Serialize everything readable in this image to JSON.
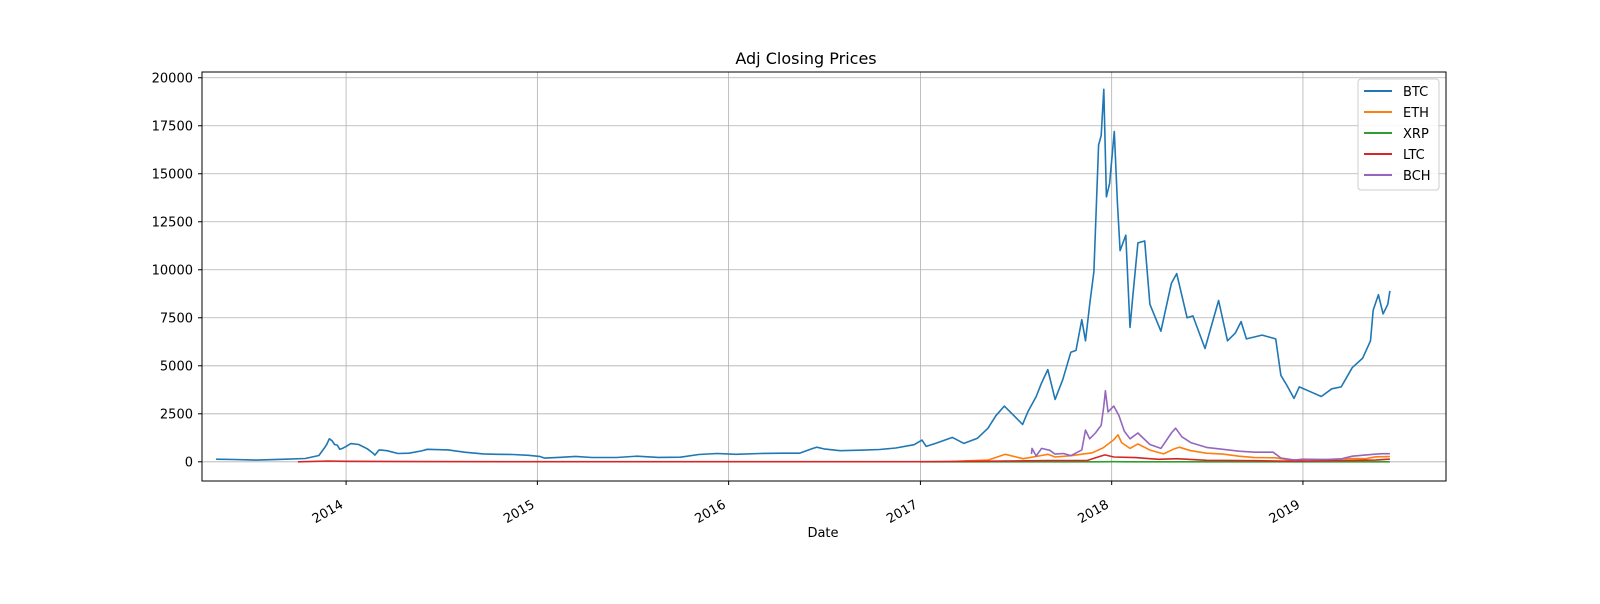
{
  "chart_data": {
    "type": "line",
    "title": "Adj Closing Prices",
    "xlabel": "Date",
    "ylabel": "",
    "grid": true,
    "legend_position": "top-right",
    "xlim": [
      "2013-04-01",
      "2019-10-01"
    ],
    "ylim": [
      -1000,
      20300
    ],
    "x_ticks": [
      "2014",
      "2015",
      "2016",
      "2017",
      "2018",
      "2019"
    ],
    "y_ticks": [
      0,
      2500,
      5000,
      7500,
      10000,
      12500,
      15000,
      17500,
      20000
    ],
    "series": [
      {
        "name": "BTC",
        "color": "#1f77b4",
        "points": [
          [
            "2013-04-28",
            135
          ],
          [
            "2013-06-01",
            120
          ],
          [
            "2013-07-15",
            90
          ],
          [
            "2013-09-01",
            130
          ],
          [
            "2013-10-15",
            170
          ],
          [
            "2013-11-10",
            330
          ],
          [
            "2013-11-20",
            700
          ],
          [
            "2013-11-25",
            900
          ],
          [
            "2013-11-30",
            1200
          ],
          [
            "2013-12-05",
            1100
          ],
          [
            "2013-12-10",
            900
          ],
          [
            "2013-12-15",
            870
          ],
          [
            "2013-12-20",
            650
          ],
          [
            "2013-12-25",
            700
          ],
          [
            "2014-01-01",
            800
          ],
          [
            "2014-01-10",
            950
          ],
          [
            "2014-01-25",
            900
          ],
          [
            "2014-02-10",
            680
          ],
          [
            "2014-02-20",
            480
          ],
          [
            "2014-02-25",
            350
          ],
          [
            "2014-03-05",
            620
          ],
          [
            "2014-03-20",
            580
          ],
          [
            "2014-04-10",
            430
          ],
          [
            "2014-05-01",
            450
          ],
          [
            "2014-05-25",
            570
          ],
          [
            "2014-06-05",
            650
          ],
          [
            "2014-07-15",
            620
          ],
          [
            "2014-08-15",
            500
          ],
          [
            "2014-09-20",
            410
          ],
          [
            "2014-10-15",
            390
          ],
          [
            "2014-11-15",
            380
          ],
          [
            "2014-12-15",
            340
          ],
          [
            "2015-01-05",
            280
          ],
          [
            "2015-01-15",
            190
          ],
          [
            "2015-02-15",
            235
          ],
          [
            "2015-03-15",
            280
          ],
          [
            "2015-04-15",
            225
          ],
          [
            "2015-06-01",
            225
          ],
          [
            "2015-07-10",
            290
          ],
          [
            "2015-08-20",
            230
          ],
          [
            "2015-10-01",
            240
          ],
          [
            "2015-11-05",
            380
          ],
          [
            "2015-12-10",
            430
          ],
          [
            "2016-01-15",
            390
          ],
          [
            "2016-03-01",
            430
          ],
          [
            "2016-04-15",
            450
          ],
          [
            "2016-05-15",
            450
          ],
          [
            "2016-06-10",
            700
          ],
          [
            "2016-06-17",
            760
          ],
          [
            "2016-07-01",
            670
          ],
          [
            "2016-08-01",
            580
          ],
          [
            "2016-09-15",
            610
          ],
          [
            "2016-10-15",
            640
          ],
          [
            "2016-11-15",
            720
          ],
          [
            "2016-12-20",
            890
          ],
          [
            "2017-01-04",
            1130
          ],
          [
            "2017-01-12",
            800
          ],
          [
            "2017-02-01",
            980
          ],
          [
            "2017-03-03",
            1270
          ],
          [
            "2017-03-25",
            960
          ],
          [
            "2017-04-20",
            1230
          ],
          [
            "2017-05-10",
            1750
          ],
          [
            "2017-05-25",
            2400
          ],
          [
            "2017-06-10",
            2900
          ],
          [
            "2017-06-25",
            2500
          ],
          [
            "2017-07-15",
            1950
          ],
          [
            "2017-07-25",
            2600
          ],
          [
            "2017-08-10",
            3400
          ],
          [
            "2017-08-20",
            4100
          ],
          [
            "2017-09-01",
            4800
          ],
          [
            "2017-09-15",
            3250
          ],
          [
            "2017-09-30",
            4300
          ],
          [
            "2017-10-15",
            5700
          ],
          [
            "2017-10-25",
            5800
          ],
          [
            "2017-11-05",
            7400
          ],
          [
            "2017-11-12",
            6300
          ],
          [
            "2017-11-20",
            8200
          ],
          [
            "2017-11-28",
            9900
          ],
          [
            "2017-12-07",
            16500
          ],
          [
            "2017-12-12",
            17000
          ],
          [
            "2017-12-17",
            19400
          ],
          [
            "2017-12-22",
            13800
          ],
          [
            "2017-12-28",
            14500
          ],
          [
            "2018-01-06",
            17200
          ],
          [
            "2018-01-12",
            13500
          ],
          [
            "2018-01-17",
            11000
          ],
          [
            "2018-01-28",
            11800
          ],
          [
            "2018-02-05",
            7000
          ],
          [
            "2018-02-10",
            8500
          ],
          [
            "2018-02-20",
            11400
          ],
          [
            "2018-03-05",
            11500
          ],
          [
            "2018-03-15",
            8200
          ],
          [
            "2018-04-05",
            6800
          ],
          [
            "2018-04-25",
            9300
          ],
          [
            "2018-05-05",
            9800
          ],
          [
            "2018-05-25",
            7500
          ],
          [
            "2018-06-05",
            7600
          ],
          [
            "2018-06-28",
            5900
          ],
          [
            "2018-07-24",
            8400
          ],
          [
            "2018-08-10",
            6300
          ],
          [
            "2018-08-25",
            6700
          ],
          [
            "2018-09-05",
            7300
          ],
          [
            "2018-09-15",
            6400
          ],
          [
            "2018-10-15",
            6600
          ],
          [
            "2018-11-10",
            6400
          ],
          [
            "2018-11-20",
            4500
          ],
          [
            "2018-12-01",
            4000
          ],
          [
            "2018-12-15",
            3300
          ],
          [
            "2018-12-25",
            3900
          ],
          [
            "2019-01-15",
            3650
          ],
          [
            "2019-02-05",
            3400
          ],
          [
            "2019-02-25",
            3800
          ],
          [
            "2019-03-15",
            3900
          ],
          [
            "2019-04-05",
            4900
          ],
          [
            "2019-04-25",
            5400
          ],
          [
            "2019-05-10",
            6300
          ],
          [
            "2019-05-15",
            7900
          ],
          [
            "2019-05-25",
            8700
          ],
          [
            "2019-06-03",
            7700
          ],
          [
            "2019-06-12",
            8200
          ],
          [
            "2019-06-16",
            8900
          ]
        ]
      },
      {
        "name": "ETH",
        "color": "#ff7f0e",
        "points": [
          [
            "2017-03-01",
            15
          ],
          [
            "2017-04-01",
            50
          ],
          [
            "2017-05-10",
            90
          ],
          [
            "2017-06-12",
            390
          ],
          [
            "2017-07-16",
            160
          ],
          [
            "2017-08-15",
            300
          ],
          [
            "2017-09-01",
            390
          ],
          [
            "2017-09-15",
            250
          ],
          [
            "2017-10-15",
            320
          ],
          [
            "2017-11-25",
            470
          ],
          [
            "2017-12-15",
            720
          ],
          [
            "2017-12-20",
            820
          ],
          [
            "2018-01-05",
            1150
          ],
          [
            "2018-01-13",
            1400
          ],
          [
            "2018-01-20",
            1000
          ],
          [
            "2018-02-05",
            700
          ],
          [
            "2018-02-20",
            930
          ],
          [
            "2018-03-15",
            610
          ],
          [
            "2018-04-10",
            410
          ],
          [
            "2018-05-01",
            680
          ],
          [
            "2018-05-10",
            760
          ],
          [
            "2018-06-01",
            580
          ],
          [
            "2018-07-01",
            450
          ],
          [
            "2018-08-01",
            400
          ],
          [
            "2018-09-01",
            290
          ],
          [
            "2018-10-01",
            220
          ],
          [
            "2018-11-10",
            210
          ],
          [
            "2018-12-01",
            115
          ],
          [
            "2018-12-15",
            85
          ],
          [
            "2019-01-01",
            140
          ],
          [
            "2019-02-01",
            110
          ],
          [
            "2019-03-01",
            135
          ],
          [
            "2019-04-05",
            170
          ],
          [
            "2019-05-01",
            160
          ],
          [
            "2019-05-20",
            260
          ],
          [
            "2019-06-16",
            270
          ]
        ]
      },
      {
        "name": "XRP",
        "color": "#2ca02c",
        "points": [
          [
            "2017-01-01",
            0.01
          ],
          [
            "2017-05-15",
            0.3
          ],
          [
            "2017-12-01",
            0.25
          ],
          [
            "2018-01-05",
            3.3
          ],
          [
            "2018-02-01",
            1.2
          ],
          [
            "2018-06-01",
            0.6
          ],
          [
            "2019-01-01",
            0.35
          ],
          [
            "2019-06-16",
            0.42
          ]
        ]
      },
      {
        "name": "LTC",
        "color": "#d62728",
        "points": [
          [
            "2013-10-01",
            2
          ],
          [
            "2013-11-28",
            42
          ],
          [
            "2014-01-01",
            25
          ],
          [
            "2014-06-01",
            10
          ],
          [
            "2015-01-01",
            3
          ],
          [
            "2016-06-01",
            4
          ],
          [
            "2017-01-01",
            4
          ],
          [
            "2017-05-15",
            30
          ],
          [
            "2017-09-01",
            60
          ],
          [
            "2017-11-15",
            70
          ],
          [
            "2017-12-12",
            300
          ],
          [
            "2017-12-19",
            360
          ],
          [
            "2018-01-05",
            250
          ],
          [
            "2018-02-15",
            220
          ],
          [
            "2018-04-01",
            130
          ],
          [
            "2018-05-05",
            160
          ],
          [
            "2018-07-01",
            80
          ],
          [
            "2018-10-01",
            55
          ],
          [
            "2018-12-15",
            25
          ],
          [
            "2019-03-01",
            55
          ],
          [
            "2019-05-20",
            90
          ],
          [
            "2019-06-10",
            130
          ],
          [
            "2019-06-16",
            135
          ]
        ]
      },
      {
        "name": "BCH",
        "color": "#9467bd",
        "points": [
          [
            "2017-08-01",
            400
          ],
          [
            "2017-08-02",
            700
          ],
          [
            "2017-08-10",
            300
          ],
          [
            "2017-08-20",
            700
          ],
          [
            "2017-09-05",
            600
          ],
          [
            "2017-09-15",
            400
          ],
          [
            "2017-10-01",
            430
          ],
          [
            "2017-10-15",
            320
          ],
          [
            "2017-11-05",
            620
          ],
          [
            "2017-11-12",
            1650
          ],
          [
            "2017-11-20",
            1200
          ],
          [
            "2017-12-01",
            1500
          ],
          [
            "2017-12-12",
            1900
          ],
          [
            "2017-12-17",
            2900
          ],
          [
            "2017-12-20",
            3700
          ],
          [
            "2017-12-25",
            2600
          ],
          [
            "2018-01-05",
            2900
          ],
          [
            "2018-01-15",
            2400
          ],
          [
            "2018-01-25",
            1600
          ],
          [
            "2018-02-05",
            1200
          ],
          [
            "2018-02-20",
            1500
          ],
          [
            "2018-03-15",
            900
          ],
          [
            "2018-04-05",
            700
          ],
          [
            "2018-04-25",
            1500
          ],
          [
            "2018-05-03",
            1750
          ],
          [
            "2018-05-15",
            1300
          ],
          [
            "2018-06-01",
            1000
          ],
          [
            "2018-07-01",
            750
          ],
          [
            "2018-08-01",
            650
          ],
          [
            "2018-09-01",
            550
          ],
          [
            "2018-10-01",
            500
          ],
          [
            "2018-11-05",
            500
          ],
          [
            "2018-11-20",
            200
          ],
          [
            "2018-12-15",
            100
          ],
          [
            "2019-01-15",
            130
          ],
          [
            "2019-02-15",
            120
          ],
          [
            "2019-03-15",
            150
          ],
          [
            "2019-04-05",
            290
          ],
          [
            "2019-05-15",
            390
          ],
          [
            "2019-06-01",
            420
          ],
          [
            "2019-06-16",
            420
          ]
        ]
      }
    ]
  }
}
